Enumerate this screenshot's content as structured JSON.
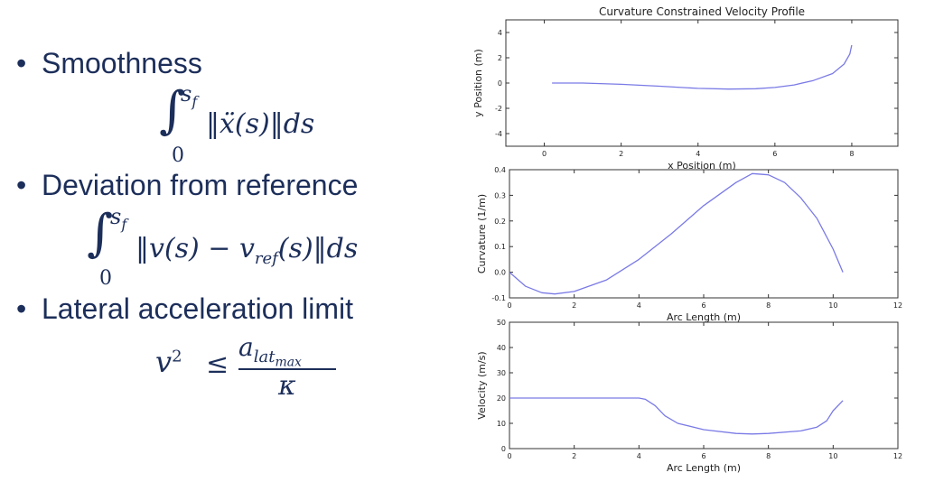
{
  "bullets": [
    {
      "label": "Smoothness"
    },
    {
      "label": "Deviation from reference"
    },
    {
      "label": "Lateral acceleration limit"
    }
  ],
  "formulas": {
    "smoothness": {
      "upper_limit": "s",
      "upper_sub": "f",
      "lower_limit": "0",
      "body": "‖ẍ(s)‖ds"
    },
    "deviation": {
      "upper_limit": "s",
      "upper_sub": "f",
      "lower_limit": "0",
      "body_pre": "‖v(s) − v",
      "sub": "ref",
      "body_post": "(s)‖ds"
    },
    "lateral": {
      "lhs": "v",
      "lhs_sup": "2",
      "relation": "≤",
      "numerator": "a",
      "numerator_sub": "lat",
      "numerator_subsub": "max",
      "denominator": "κ"
    }
  },
  "colors": {
    "text": "#1c2e5a",
    "series": "#7a7ae6",
    "axis": "#333333"
  },
  "chart_data": [
    {
      "type": "line",
      "title": "Curvature Constrained Velocity Profile",
      "xlabel": "x Position (m)",
      "ylabel": "y Position (m)",
      "xlim": [
        -1,
        9.2
      ],
      "ylim": [
        -5,
        5
      ],
      "xticks": [
        0,
        2,
        4,
        6,
        8
      ],
      "yticks": [
        -4,
        -2,
        0,
        2,
        4
      ],
      "x": [
        0.2,
        1.0,
        2.0,
        3.0,
        4.0,
        4.8,
        5.5,
        6.0,
        6.5,
        7.0,
        7.5,
        7.8,
        7.95,
        8.0
      ],
      "y": [
        0.0,
        0.0,
        -0.1,
        -0.25,
        -0.42,
        -0.48,
        -0.45,
        -0.35,
        -0.15,
        0.2,
        0.75,
        1.5,
        2.3,
        3.0
      ]
    },
    {
      "type": "line",
      "title": "",
      "xlabel": "Arc Length (m)",
      "ylabel": "Curvature (1/m)",
      "xlim": [
        0,
        12
      ],
      "ylim": [
        -0.1,
        0.4
      ],
      "xticks": [
        0,
        2,
        4,
        6,
        8,
        10,
        12
      ],
      "yticks": [
        -0.1,
        0.0,
        0.1,
        0.2,
        0.3,
        0.4
      ],
      "x": [
        0.0,
        0.5,
        1.0,
        1.4,
        2.0,
        3.0,
        4.0,
        5.0,
        6.0,
        7.0,
        7.5,
        8.0,
        8.5,
        9.0,
        9.5,
        10.0,
        10.3
      ],
      "y": [
        0.0,
        -0.055,
        -0.08,
        -0.085,
        -0.075,
        -0.03,
        0.05,
        0.15,
        0.26,
        0.35,
        0.385,
        0.38,
        0.35,
        0.29,
        0.21,
        0.09,
        0.0
      ]
    },
    {
      "type": "line",
      "title": "",
      "xlabel": "Arc Length (m)",
      "ylabel": "Velocity (m/s)",
      "xlim": [
        0,
        12
      ],
      "ylim": [
        0,
        50
      ],
      "xticks": [
        0,
        2,
        4,
        6,
        8,
        10,
        12
      ],
      "yticks": [
        0,
        10,
        20,
        30,
        40,
        50
      ],
      "x": [
        0.0,
        1.0,
        2.0,
        3.0,
        4.0,
        4.2,
        4.5,
        4.8,
        5.2,
        6.0,
        7.0,
        7.5,
        8.0,
        9.0,
        9.5,
        9.8,
        10.0,
        10.3
      ],
      "y": [
        20,
        20,
        20,
        20,
        20,
        19.5,
        17,
        13,
        10,
        7.5,
        6,
        5.8,
        6,
        7,
        8.5,
        11,
        15,
        19
      ]
    }
  ]
}
